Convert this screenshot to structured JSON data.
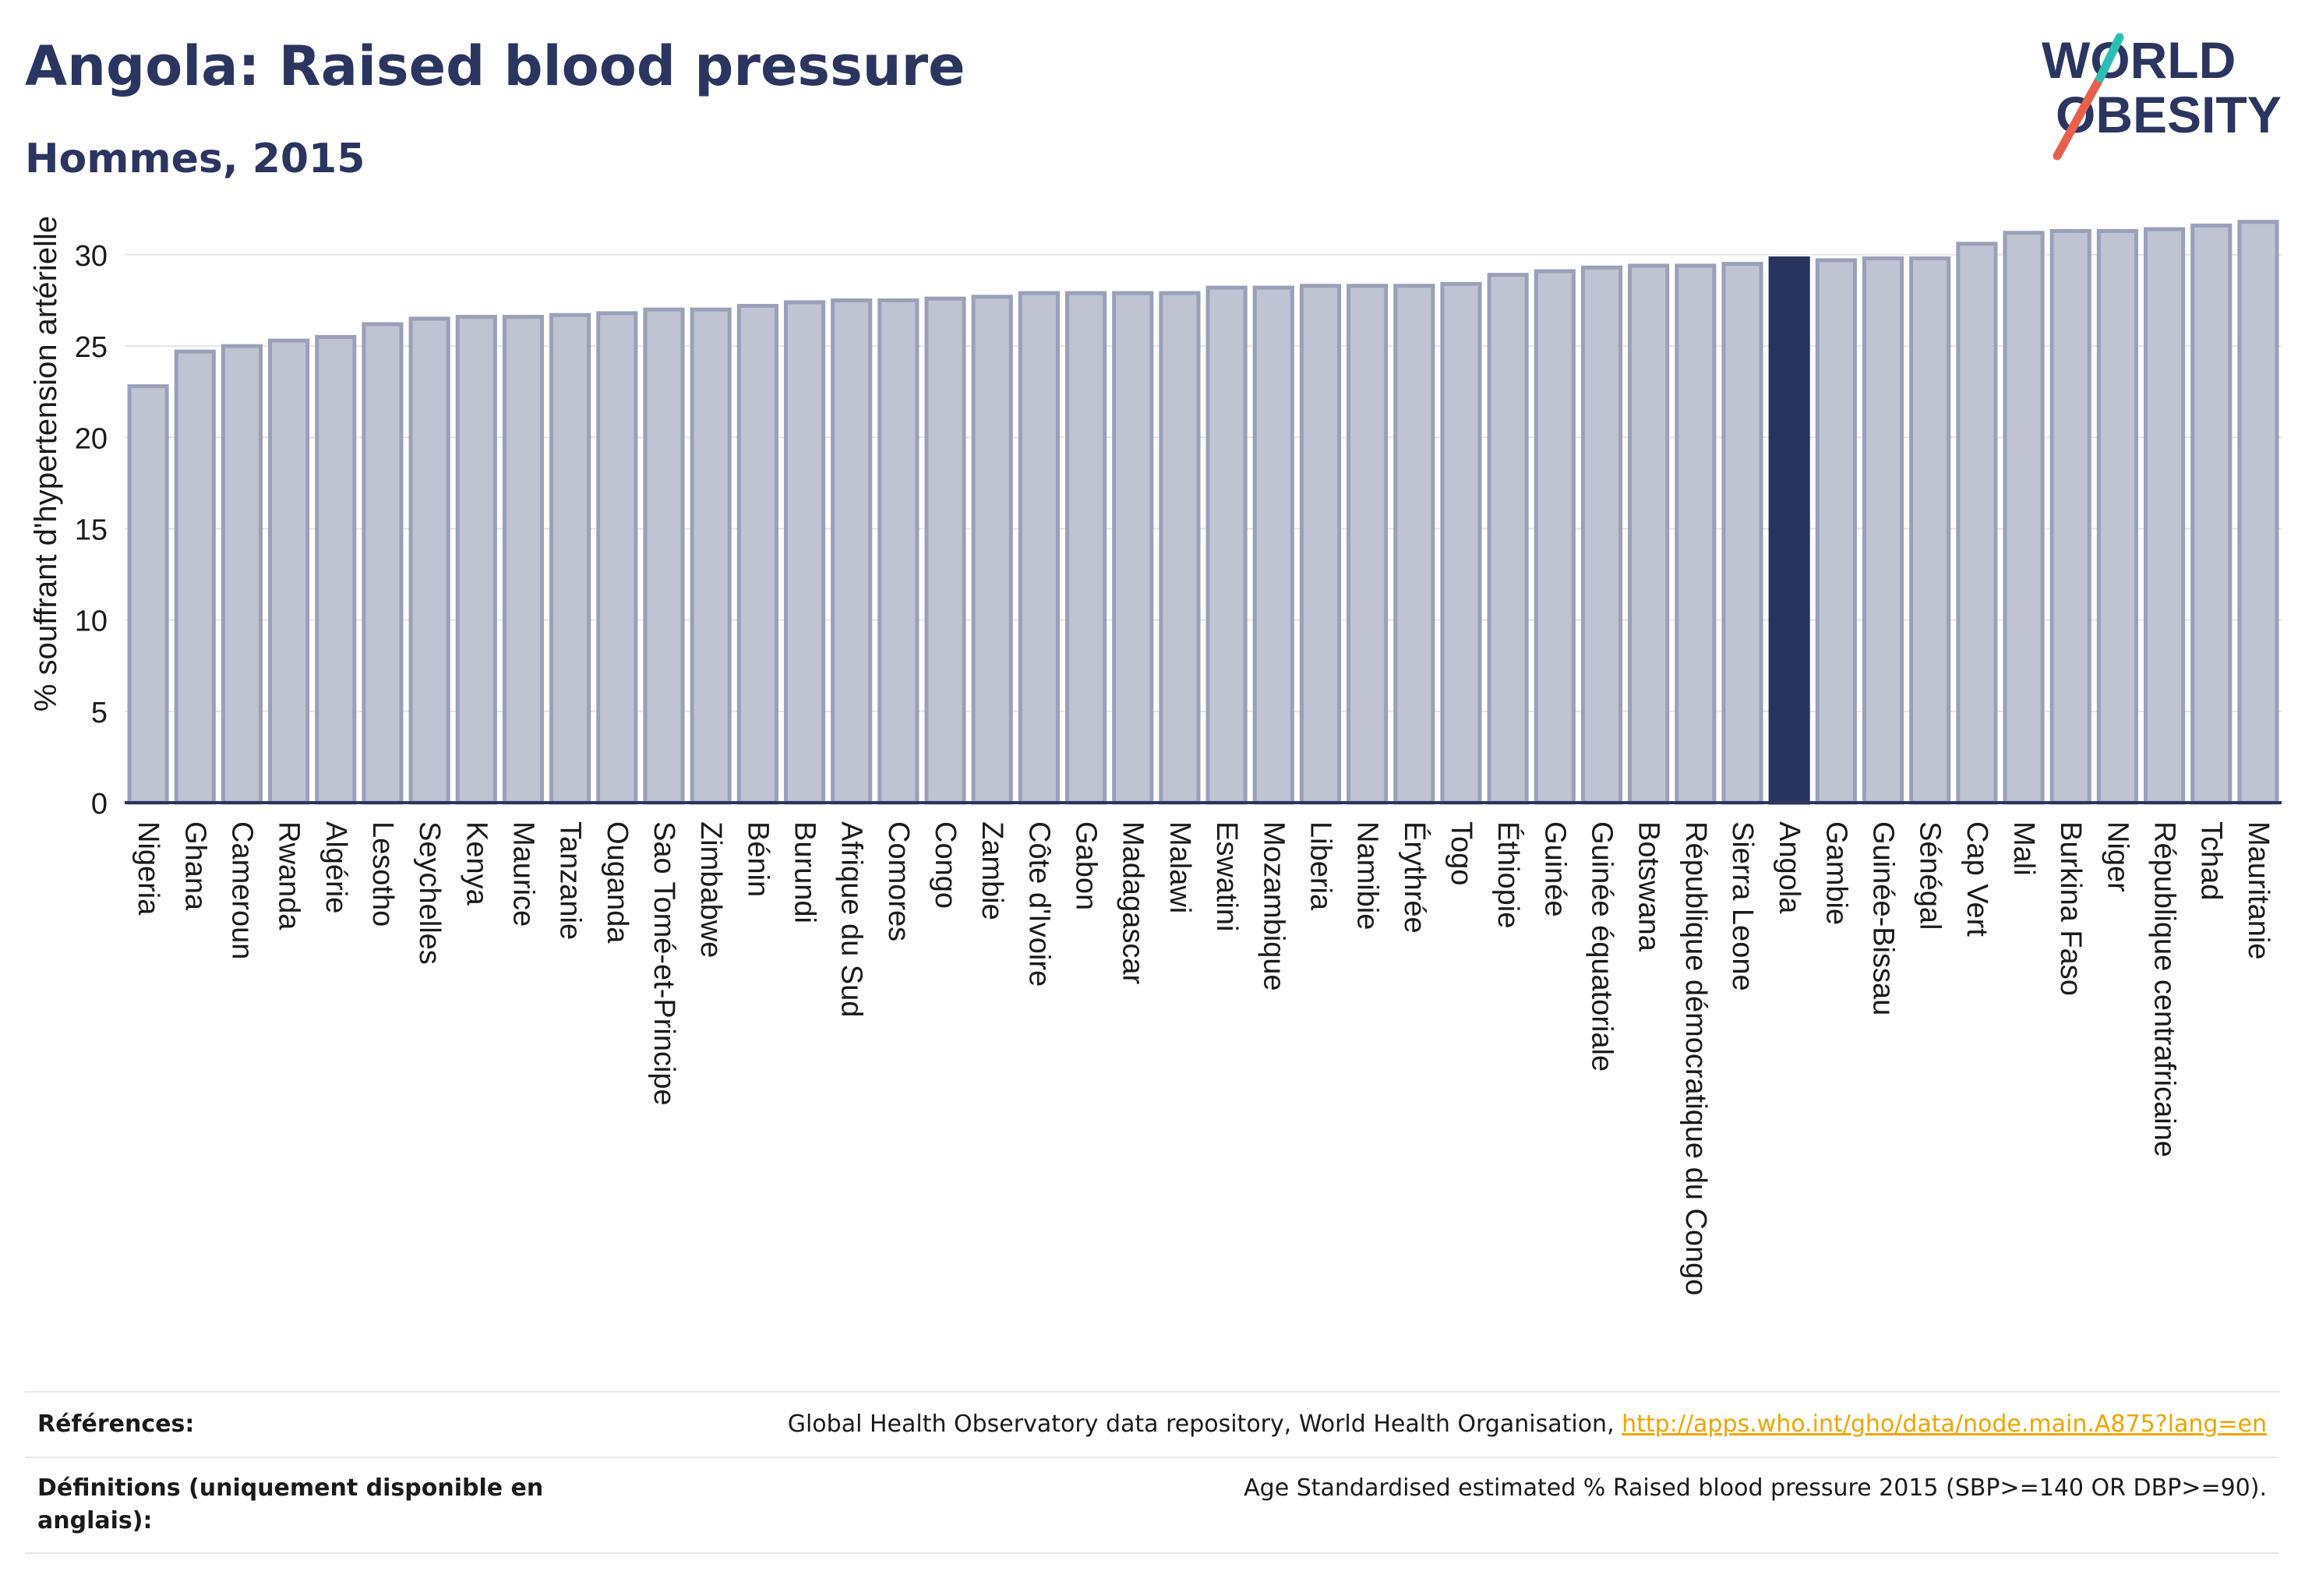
{
  "title": "Angola: Raised blood pressure",
  "subtitle": "Hommes, 2015",
  "logo": {
    "line1": "WORLD",
    "line2": "OBESITY"
  },
  "colors": {
    "title": "#2a3560",
    "bar_default": "#bfc3d2",
    "bar_default_stroke": "#9aa0b8",
    "bar_highlight": "#28335e",
    "axis": "#2a3560",
    "link": "#f0a500",
    "logo_red": "#e8604c",
    "logo_teal": "#2bbfb3"
  },
  "chart_data": {
    "type": "bar",
    "ylabel": "% souffrant d'hypertension artérielle",
    "xlabel": "",
    "ylim": [
      0,
      32
    ],
    "yticks": [
      0,
      5,
      10,
      15,
      20,
      25,
      30
    ],
    "grid": true,
    "highlight": "Angola",
    "categories": [
      "Nigeria",
      "Ghana",
      "Cameroun",
      "Rwanda",
      "Algérie",
      "Lesotho",
      "Seychelles",
      "Kenya",
      "Maurice",
      "Tanzanie",
      "Ouganda",
      "Sao Tomé-et-Principe",
      "Zimbabwe",
      "Bénin",
      "Burundi",
      "Afrique du Sud",
      "Comores",
      "Congo",
      "Zambie",
      "Côte d'Ivoire",
      "Gabon",
      "Madagascar",
      "Malawi",
      "Eswatini",
      "Mozambique",
      "Liberia",
      "Namibie",
      "Érythrée",
      "Togo",
      "Éthiopie",
      "Guinée",
      "Guinée équatoriale",
      "Botswana",
      "République démocratique du Congo",
      "Sierra Leone",
      "Angola",
      "Gambie",
      "Guinée-Bissau",
      "Sénégal",
      "Cap Vert",
      "Mali",
      "Burkina Faso",
      "Niger",
      "République centrafricaine",
      "Tchad",
      "Mauritanie"
    ],
    "values": [
      22.8,
      24.7,
      25.0,
      25.3,
      25.5,
      26.2,
      26.5,
      26.6,
      26.6,
      26.7,
      26.8,
      27.0,
      27.0,
      27.2,
      27.4,
      27.5,
      27.5,
      27.6,
      27.7,
      27.9,
      27.9,
      27.9,
      27.9,
      28.2,
      28.2,
      28.3,
      28.3,
      28.3,
      28.4,
      28.9,
      29.1,
      29.3,
      29.4,
      29.4,
      29.5,
      29.8,
      29.7,
      29.8,
      29.8,
      30.6,
      31.2,
      31.3,
      31.3,
      31.4,
      31.6,
      31.8
    ]
  },
  "footer": {
    "references_label": "Références:",
    "references_text": "Global Health Observatory data repository, World Health Organisation, ",
    "references_link": "http://apps.who.int/gho/data/node.main.A875?lang=en",
    "definitions_label": "Définitions (uniquement disponible en anglais):",
    "definitions_text": "Age Standardised estimated % Raised blood pressure 2015 (SBP>=140 OR DBP>=90)."
  }
}
